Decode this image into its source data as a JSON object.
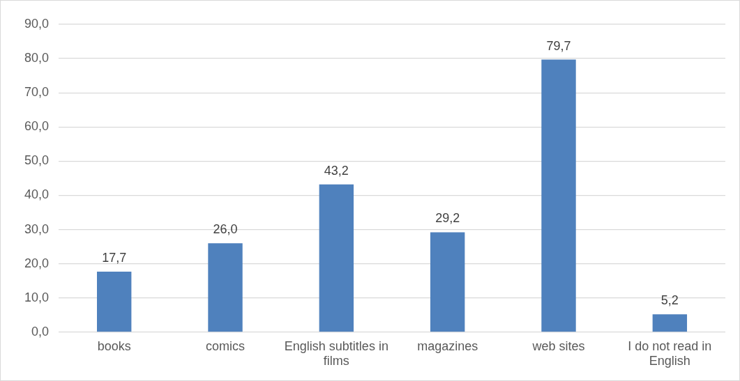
{
  "chart_data": {
    "type": "bar",
    "categories": [
      "books",
      "comics",
      "English subtitles in films",
      "magazines",
      "web sites",
      "I do not read in English"
    ],
    "values": [
      17.7,
      26.0,
      43.2,
      29.2,
      79.7,
      5.2
    ],
    "value_labels": [
      "17,7",
      "26,0",
      "43,2",
      "29,2",
      "79,7",
      "5,2"
    ],
    "color": "#4f81bd",
    "ylim": [
      0,
      90
    ],
    "yticks": [
      {
        "value": 0,
        "label": "0,0"
      },
      {
        "value": 10,
        "label": "10,0"
      },
      {
        "value": 20,
        "label": "20,0"
      },
      {
        "value": 30,
        "label": "30,0"
      },
      {
        "value": 40,
        "label": "40,0"
      },
      {
        "value": 50,
        "label": "50,0"
      },
      {
        "value": 60,
        "label": "60,0"
      },
      {
        "value": 70,
        "label": "70,0"
      },
      {
        "value": 80,
        "label": "80,0"
      },
      {
        "value": 90,
        "label": "90,0"
      }
    ],
    "grid": "y",
    "legend": false
  }
}
